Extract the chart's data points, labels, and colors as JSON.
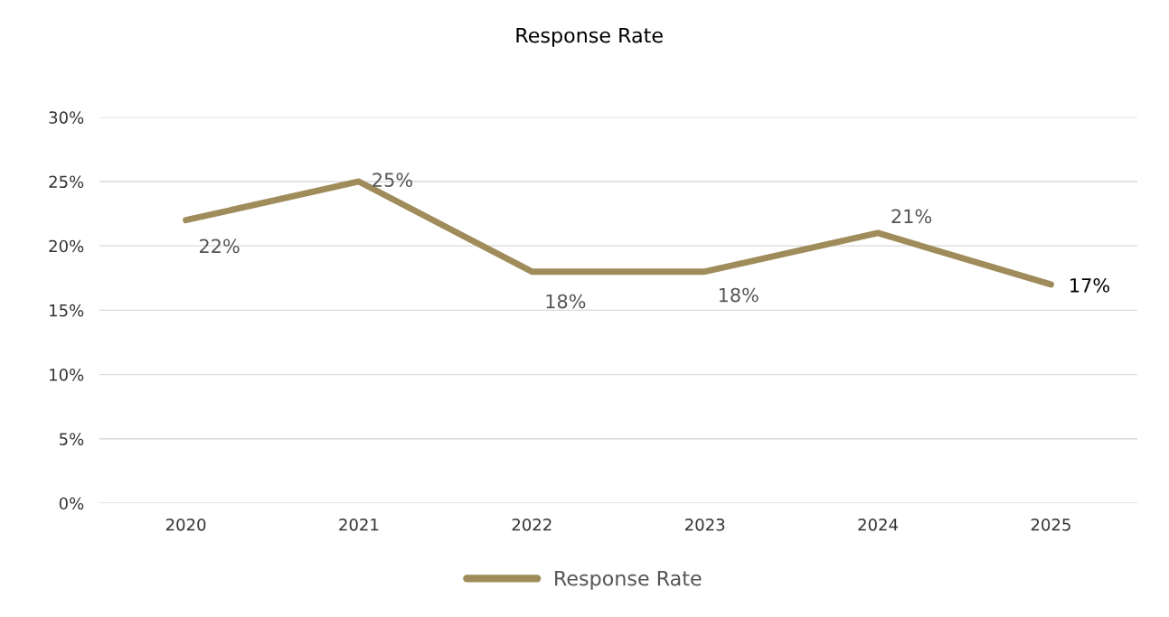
{
  "chart_data": {
    "type": "line",
    "title": "Response Rate",
    "categories": [
      "2020",
      "2021",
      "2022",
      "2023",
      "2024",
      "2025"
    ],
    "series": [
      {
        "name": "Response Rate",
        "color": "#a08c5b",
        "values": [
          22,
          25,
          18,
          18,
          21,
          17
        ],
        "value_labels": [
          "22%",
          "25%",
          "18%",
          "18%",
          "21%",
          "17%"
        ]
      }
    ],
    "ylim": [
      0,
      30
    ],
    "yticks": [
      {
        "value": 0,
        "label": "0%"
      },
      {
        "value": 5,
        "label": "5%"
      },
      {
        "value": 10,
        "label": "10%"
      },
      {
        "value": 15,
        "label": "15%"
      },
      {
        "value": 20,
        "label": "20%"
      },
      {
        "value": 25,
        "label": "25%"
      },
      {
        "value": 30,
        "label": "30%"
      }
    ],
    "grid": "y",
    "legend": "bottom",
    "marker": "none",
    "line_style": "solid"
  }
}
